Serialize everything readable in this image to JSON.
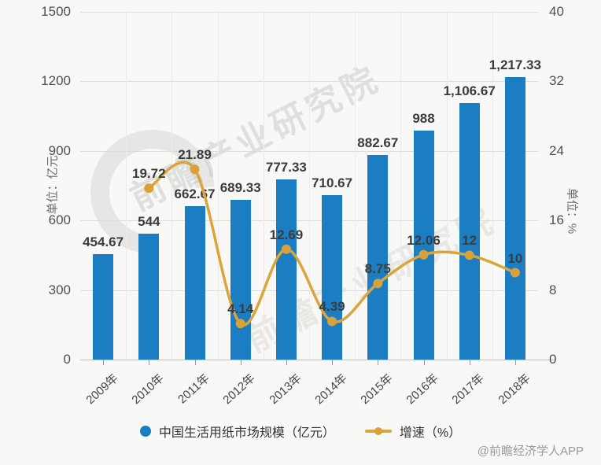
{
  "chart_data": {
    "type": "bar+line",
    "categories": [
      "2009年",
      "2010年",
      "2011年",
      "2012年",
      "2013年",
      "2014年",
      "2015年",
      "2016年",
      "2017年",
      "2018年"
    ],
    "series": [
      {
        "name": "中国生活用纸市场规模（亿元）",
        "type": "bar",
        "axis": "left",
        "color": "#1b7ec2",
        "values": [
          454.67,
          544,
          662.67,
          689.33,
          777.33,
          710.67,
          882.67,
          988,
          1106.67,
          1217.33
        ],
        "labels": [
          "454.67",
          "544",
          "662.67",
          "689.33",
          "777.33",
          "710.67",
          "882.67",
          "988",
          "1,106.67",
          "1,217.33"
        ]
      },
      {
        "name": "增速（%）",
        "type": "line",
        "axis": "right",
        "color": "#dca53c",
        "values": [
          null,
          19.72,
          21.89,
          4.14,
          12.69,
          4.39,
          8.75,
          12.06,
          12,
          10
        ],
        "labels": [
          "",
          "19.72",
          "21.89",
          "4.14",
          "12.69",
          "4.39",
          "8.75",
          "12.06",
          "12",
          "10"
        ]
      }
    ],
    "left_axis": {
      "title": "单位：亿元",
      "min": 0,
      "max": 1500,
      "step": 300,
      "ticks": [
        "1500",
        "1200",
        "900",
        "600",
        "300",
        "0"
      ]
    },
    "right_axis": {
      "title": "单位：%",
      "min": 0,
      "max": 40,
      "step": 8,
      "ticks": [
        "40",
        "32",
        "24",
        "16",
        "8",
        "0"
      ]
    },
    "grid": true,
    "legend_position": "bottom"
  },
  "legend": {
    "items": [
      {
        "label": "中国生活用纸市场规模（亿元）",
        "marker": "circle",
        "color": "#1b7ec2"
      },
      {
        "label": "增速（%）",
        "marker": "line-dot",
        "color": "#dca53c"
      }
    ]
  },
  "watermark": {
    "text": "前瞻产业研究院"
  },
  "footer": {
    "credit": "@前瞻经济学人APP"
  }
}
